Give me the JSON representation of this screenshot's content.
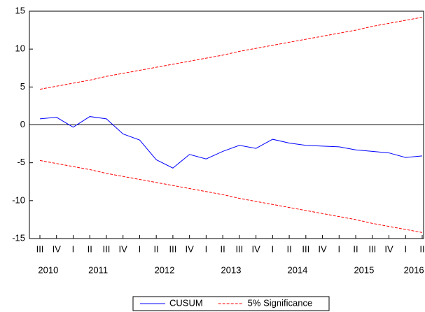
{
  "chart_data": {
    "type": "line",
    "categories": [
      "III",
      "IV",
      "I",
      "II",
      "III",
      "IV",
      "I",
      "II",
      "III",
      "IV",
      "I",
      "II",
      "III",
      "IV",
      "I",
      "II",
      "III",
      "IV",
      "I",
      "II",
      "III",
      "IV",
      "I",
      "II"
    ],
    "years": [
      "2010",
      "2010",
      "2011",
      "2011",
      "2011",
      "2011",
      "2012",
      "2012",
      "2012",
      "2012",
      "2013",
      "2013",
      "2013",
      "2013",
      "2014",
      "2014",
      "2014",
      "2014",
      "2015",
      "2015",
      "2015",
      "2015",
      "2016",
      "2016"
    ],
    "ylim": [
      -15,
      15
    ],
    "yticks": [
      -15,
      -10,
      -5,
      0,
      5,
      10,
      15
    ],
    "hline": 0,
    "series": [
      {
        "name": "CUSUM",
        "color": "#0000ff",
        "dashed": false,
        "values": [
          0.8,
          1.0,
          -0.3,
          1.1,
          0.8,
          -1.2,
          -2.0,
          -4.6,
          -5.7,
          -3.9,
          -4.5,
          -3.5,
          -2.7,
          -3.1,
          -1.9,
          -2.4,
          -2.7,
          -2.8,
          -2.9,
          -3.3,
          -3.5,
          -3.7,
          -4.3,
          -4.1
        ]
      },
      {
        "name": "5% Significance",
        "color": "#ff0000",
        "dashed": true,
        "values": [
          4.7,
          5.1,
          5.5,
          5.9,
          6.4,
          6.8,
          7.2,
          7.6,
          8.0,
          8.4,
          8.8,
          9.2,
          9.7,
          10.1,
          10.5,
          10.9,
          11.3,
          11.7,
          12.1,
          12.5,
          13.0,
          13.4,
          13.8,
          14.2
        ],
        "lower": [
          -4.7,
          -5.1,
          -5.5,
          -5.9,
          -6.4,
          -6.8,
          -7.2,
          -7.6,
          -8.0,
          -8.4,
          -8.8,
          -9.2,
          -9.7,
          -10.1,
          -10.5,
          -10.9,
          -11.3,
          -11.7,
          -12.1,
          -12.5,
          -13.0,
          -13.4,
          -13.8,
          -14.2
        ]
      }
    ]
  }
}
